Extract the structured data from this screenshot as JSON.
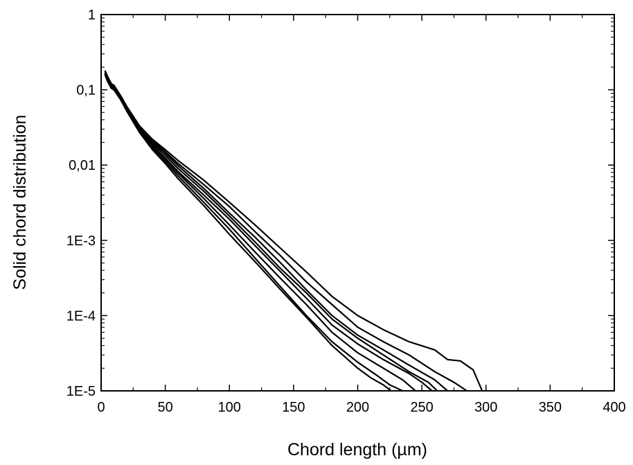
{
  "chart_data": {
    "type": "line",
    "title": "",
    "xlabel": "Chord length (µm)",
    "ylabel": "Solid chord distribution",
    "xlim": [
      0,
      400
    ],
    "ylim": [
      1e-05,
      1
    ],
    "yscale": "log",
    "grid": false,
    "line_color": "#000000",
    "x_ticks": [
      {
        "value": 0,
        "label": "0"
      },
      {
        "value": 50,
        "label": "50"
      },
      {
        "value": 100,
        "label": "100"
      },
      {
        "value": 150,
        "label": "150"
      },
      {
        "value": 200,
        "label": "200"
      },
      {
        "value": 250,
        "label": "250"
      },
      {
        "value": 300,
        "label": "300"
      },
      {
        "value": 350,
        "label": "350"
      },
      {
        "value": 400,
        "label": "400"
      }
    ],
    "y_ticks": [
      {
        "value": 1,
        "label": "1"
      },
      {
        "value": 0.1,
        "label": "0,1"
      },
      {
        "value": 0.01,
        "label": "0,01"
      },
      {
        "value": 0.001,
        "label": "1E-3"
      },
      {
        "value": 0.0001,
        "label": "1E-4"
      },
      {
        "value": 1e-05,
        "label": "1E-5"
      }
    ],
    "series": [
      {
        "x": [
          3,
          5,
          8,
          10,
          15,
          20,
          30,
          40,
          50,
          60,
          80,
          100,
          120,
          140,
          160,
          180,
          200,
          220,
          240,
          260,
          270,
          280,
          290,
          297
        ],
        "y": [
          0.18,
          0.15,
          0.12,
          0.115,
          0.085,
          0.06,
          0.033,
          0.022,
          0.016,
          0.0115,
          0.0063,
          0.0032,
          0.0016,
          0.00078,
          0.00038,
          0.00018,
          0.0001,
          6.5e-05,
          4.5e-05,
          3.5e-05,
          2.6e-05,
          2.5e-05,
          1.9e-05,
          1e-05
        ]
      },
      {
        "x": [
          3,
          5,
          8,
          10,
          15,
          20,
          30,
          40,
          50,
          60,
          80,
          100,
          120,
          140,
          160,
          180,
          200,
          220,
          240,
          260,
          275,
          285
        ],
        "y": [
          0.17,
          0.14,
          0.11,
          0.105,
          0.08,
          0.058,
          0.032,
          0.021,
          0.015,
          0.0105,
          0.0055,
          0.0028,
          0.0013,
          0.00062,
          0.00028,
          0.00014,
          7e-05,
          4.5e-05,
          3e-05,
          1.8e-05,
          1.3e-05,
          1e-05
        ]
      },
      {
        "x": [
          3,
          5,
          8,
          10,
          15,
          20,
          30,
          40,
          50,
          60,
          80,
          100,
          120,
          140,
          160,
          180,
          200,
          220,
          240,
          260,
          270
        ],
        "y": [
          0.16,
          0.13,
          0.11,
          0.1,
          0.078,
          0.056,
          0.031,
          0.02,
          0.0145,
          0.0098,
          0.0049,
          0.0023,
          0.0011,
          0.0005,
          0.00022,
          0.0001,
          5.5e-05,
          3.5e-05,
          2.2e-05,
          1.4e-05,
          1e-05
        ]
      },
      {
        "x": [
          3,
          5,
          8,
          10,
          15,
          20,
          30,
          40,
          50,
          60,
          80,
          100,
          120,
          140,
          160,
          180,
          200,
          220,
          240,
          255,
          262
        ],
        "y": [
          0.17,
          0.14,
          0.115,
          0.11,
          0.082,
          0.058,
          0.03,
          0.019,
          0.0135,
          0.009,
          0.0045,
          0.0021,
          0.00095,
          0.00042,
          0.0002,
          9e-05,
          5e-05,
          3e-05,
          1.8e-05,
          1.3e-05,
          1e-05
        ]
      },
      {
        "x": [
          3,
          5,
          8,
          10,
          15,
          20,
          30,
          40,
          50,
          60,
          80,
          100,
          120,
          140,
          160,
          180,
          200,
          220,
          240,
          250,
          258
        ],
        "y": [
          0.16,
          0.13,
          0.105,
          0.1,
          0.077,
          0.055,
          0.029,
          0.018,
          0.0125,
          0.0082,
          0.004,
          0.0019,
          0.00085,
          0.00038,
          0.00017,
          7.5e-05,
          4.2e-05,
          2.6e-05,
          1.7e-05,
          1.3e-05,
          1e-05
        ]
      },
      {
        "x": [
          3,
          5,
          8,
          10,
          15,
          20,
          30,
          40,
          50,
          60,
          80,
          100,
          120,
          140,
          160,
          180,
          200,
          220,
          235,
          245
        ],
        "y": [
          0.18,
          0.15,
          0.12,
          0.11,
          0.08,
          0.056,
          0.029,
          0.018,
          0.012,
          0.0078,
          0.0036,
          0.0016,
          0.0007,
          0.00031,
          0.00014,
          6e-05,
          3.2e-05,
          2e-05,
          1.4e-05,
          1e-05
        ]
      },
      {
        "x": [
          3,
          5,
          8,
          10,
          15,
          20,
          30,
          40,
          50,
          60,
          80,
          100,
          120,
          140,
          160,
          180,
          200,
          215,
          225,
          235
        ],
        "y": [
          0.17,
          0.14,
          0.11,
          0.105,
          0.078,
          0.054,
          0.028,
          0.017,
          0.0112,
          0.0072,
          0.0032,
          0.0014,
          0.00058,
          0.00024,
          0.0001,
          4.5e-05,
          2.4e-05,
          1.6e-05,
          1.2e-05,
          1e-05
        ]
      },
      {
        "x": [
          3,
          5,
          8,
          10,
          15,
          20,
          30,
          40,
          50,
          60,
          80,
          100,
          120,
          140,
          160,
          180,
          200,
          210,
          220,
          226
        ],
        "y": [
          0.16,
          0.13,
          0.105,
          0.1,
          0.075,
          0.052,
          0.027,
          0.016,
          0.0105,
          0.0066,
          0.0029,
          0.0012,
          0.00052,
          0.00022,
          9.5e-05,
          4e-05,
          2e-05,
          1.5e-05,
          1.2e-05,
          1e-05
        ]
      }
    ]
  }
}
